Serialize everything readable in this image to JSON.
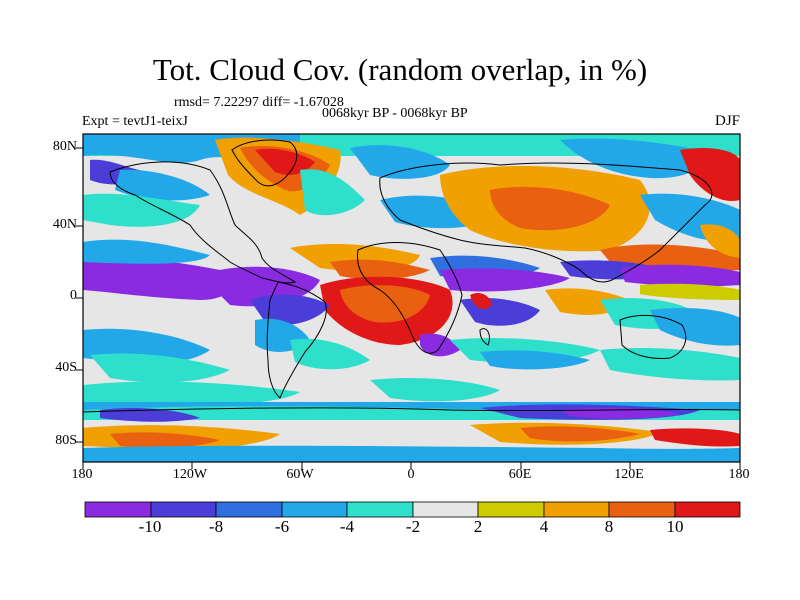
{
  "title": "Tot. Cloud Cov. (random overlap, in %)",
  "stats": "rmsd= 7.22297 diff= -1.67028",
  "period": "0068kyr BP - 0068kyr BP",
  "experiment": "Expt = tevtJ1-teixJ",
  "season": "DJF",
  "lat_labels": [
    "80N",
    "40N",
    "0",
    "40S",
    "80S"
  ],
  "lat_values": [
    80,
    40,
    0,
    -40,
    -80
  ],
  "lon_labels": [
    "180",
    "120W",
    "60W",
    "0",
    "60E",
    "120E",
    "180"
  ],
  "lon_values": [
    -180,
    -120,
    -60,
    0,
    60,
    120,
    180
  ],
  "colorbar": {
    "labels": [
      "-10",
      "-8",
      "-6",
      "-4",
      "-2",
      "2",
      "4",
      "8",
      "10"
    ],
    "colors": [
      "#8a2be2",
      "#4a3dd8",
      "#2f6fe0",
      "#22a8e8",
      "#2ee0cc",
      "#e6e6e6",
      "#cccc00",
      "#f0a000",
      "#e86010",
      "#e01818"
    ]
  }
}
